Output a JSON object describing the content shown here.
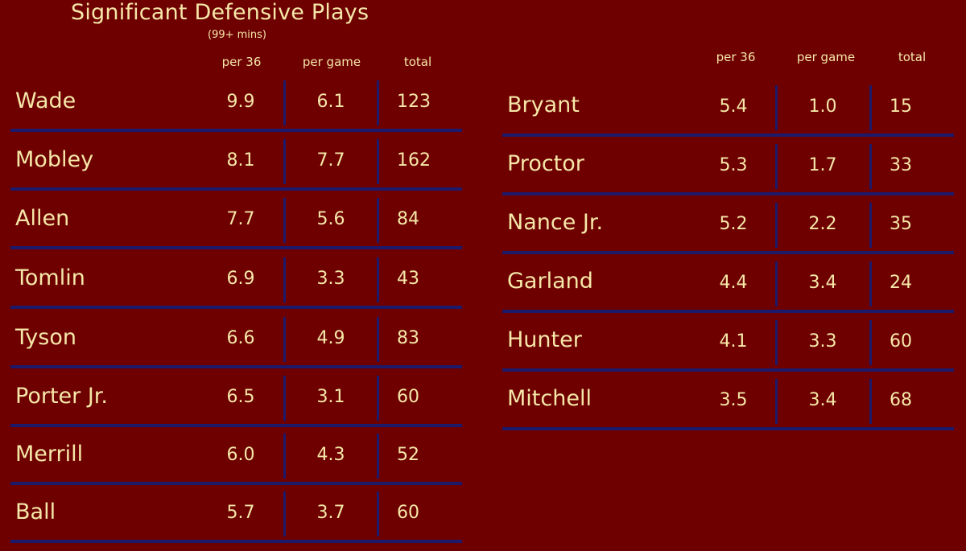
{
  "title": "Significant Defensive Plays",
  "subtitle": "(99+ mins)",
  "headers": {
    "per36": "per 36",
    "per_game": "per game",
    "total": "total"
  },
  "colors": {
    "background": "#6e0000",
    "text": "#f5e7a8",
    "divider": "#1e1a6b"
  },
  "chart_data": {
    "type": "table",
    "title": "Significant Defensive Plays",
    "subtitle": "(99+ mins)",
    "columns": [
      "per 36",
      "per game",
      "total"
    ],
    "left_table": [
      {
        "name": "Wade",
        "per36": "9.9",
        "per_game": "6.1",
        "total": "123"
      },
      {
        "name": "Mobley",
        "per36": "8.1",
        "per_game": "7.7",
        "total": "162"
      },
      {
        "name": "Allen",
        "per36": "7.7",
        "per_game": "5.6",
        "total": "84"
      },
      {
        "name": "Tomlin",
        "per36": "6.9",
        "per_game": "3.3",
        "total": "43"
      },
      {
        "name": "Tyson",
        "per36": "6.6",
        "per_game": "4.9",
        "total": "83"
      },
      {
        "name": "Porter Jr.",
        "per36": "6.5",
        "per_game": "3.1",
        "total": "60"
      },
      {
        "name": "Merrill",
        "per36": "6.0",
        "per_game": "4.3",
        "total": "52"
      },
      {
        "name": "Ball",
        "per36": "5.7",
        "per_game": "3.7",
        "total": "60"
      }
    ],
    "right_table": [
      {
        "name": "Bryant",
        "per36": "5.4",
        "per_game": "1.0",
        "total": "15"
      },
      {
        "name": "Proctor",
        "per36": "5.3",
        "per_game": "1.7",
        "total": "33"
      },
      {
        "name": "Nance Jr.",
        "per36": "5.2",
        "per_game": "2.2",
        "total": "35"
      },
      {
        "name": "Garland",
        "per36": "4.4",
        "per_game": "3.4",
        "total": "24"
      },
      {
        "name": "Hunter",
        "per36": "4.1",
        "per_game": "3.3",
        "total": "60"
      },
      {
        "name": "Mitchell",
        "per36": "3.5",
        "per_game": "3.4",
        "total": "68"
      }
    ]
  }
}
